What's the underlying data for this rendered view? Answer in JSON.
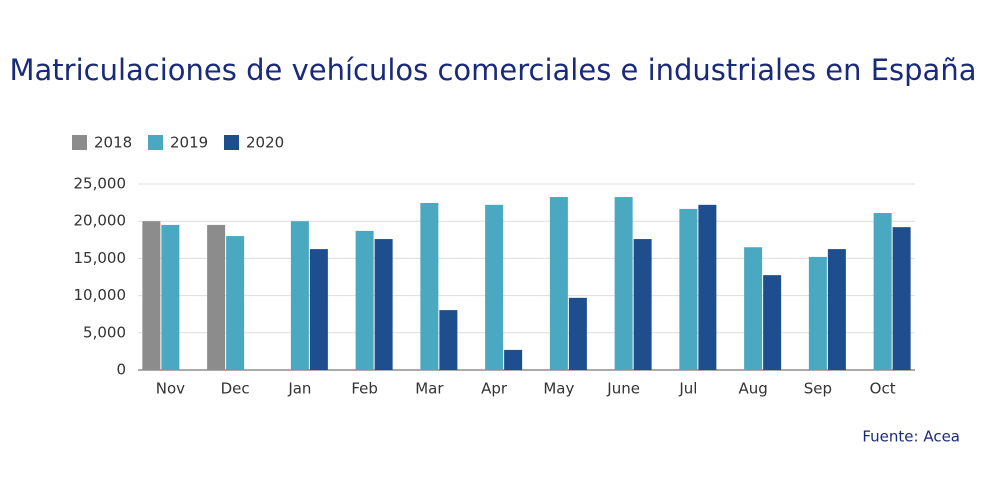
{
  "chart_data": {
    "type": "bar",
    "title": "Matriculaciones de vehículos comerciales e industriales en España",
    "source": "Fuente: Acea",
    "categories": [
      "Nov",
      "Dec",
      "Jan",
      "Feb",
      "Mar",
      "Apr",
      "May",
      "June",
      "Jul",
      "Aug",
      "Sep",
      "Oct"
    ],
    "series": [
      {
        "name": "2018",
        "color": "#8c8c8c",
        "values": [
          20000,
          19500,
          null,
          null,
          null,
          null,
          null,
          null,
          null,
          null,
          null,
          null
        ]
      },
      {
        "name": "2019",
        "color": "#4aa8c0",
        "values": [
          19500,
          18000,
          20000,
          18700,
          22450,
          22200,
          23250,
          23250,
          21650,
          16500,
          15200,
          21100
        ]
      },
      {
        "name": "2020",
        "color": "#1f4e8f",
        "values": [
          null,
          null,
          16250,
          17600,
          8050,
          2700,
          9700,
          17600,
          22200,
          12750,
          16250,
          19200
        ]
      }
    ],
    "ylim": [
      0,
      25000
    ],
    "yticks": [
      0,
      {
        "value": 5000,
        "label": "5,000"
      },
      {
        "value": 10000,
        "label": "10,000"
      },
      {
        "value": 15000,
        "label": "15,000"
      },
      {
        "value": 20000,
        "label": "20,000"
      },
      {
        "value": 25000,
        "label": "25,000"
      }
    ],
    "grid": true
  }
}
